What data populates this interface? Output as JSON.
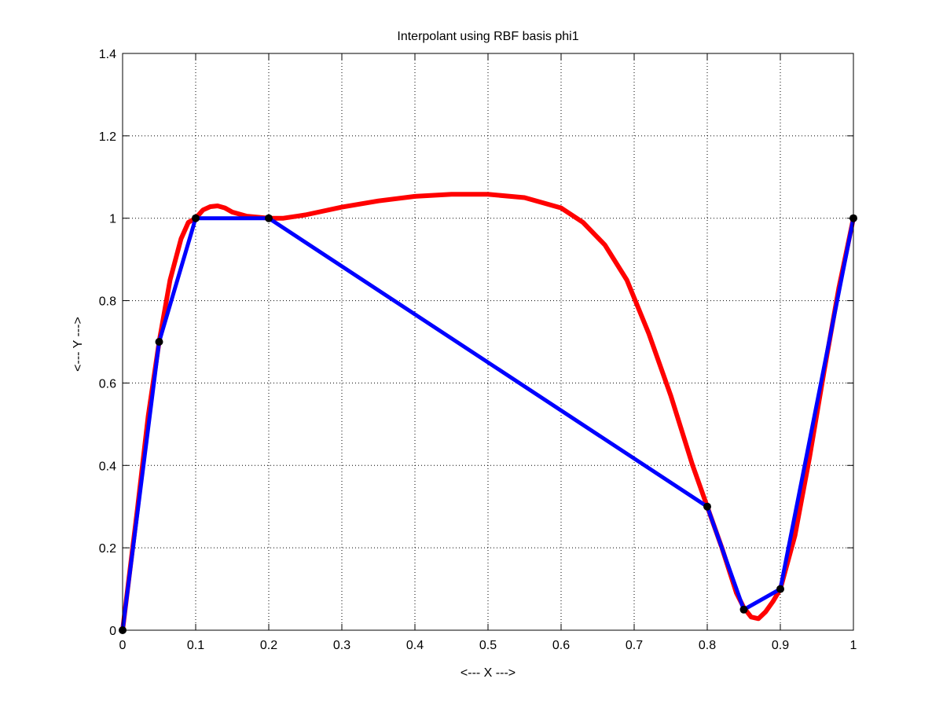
{
  "chart_data": {
    "type": "line",
    "title": "Interpolant using RBF basis phi1",
    "xlabel": "<--- X --->",
    "ylabel": "<--- Y --->",
    "xlim": [
      0,
      1
    ],
    "ylim": [
      0,
      1.4
    ],
    "grid": true,
    "x_ticks": [
      {
        "value": 0,
        "label": "0"
      },
      {
        "value": 0.1,
        "label": "0.1"
      },
      {
        "value": 0.2,
        "label": "0.2"
      },
      {
        "value": 0.3,
        "label": "0.3"
      },
      {
        "value": 0.4,
        "label": "0.4"
      },
      {
        "value": 0.5,
        "label": "0.5"
      },
      {
        "value": 0.6,
        "label": "0.6"
      },
      {
        "value": 0.7,
        "label": "0.7"
      },
      {
        "value": 0.8,
        "label": "0.8"
      },
      {
        "value": 0.9,
        "label": "0.9"
      },
      {
        "value": 1,
        "label": "1"
      }
    ],
    "y_ticks": [
      {
        "value": 0,
        "label": "0"
      },
      {
        "value": 0.2,
        "label": "0.2"
      },
      {
        "value": 0.4,
        "label": "0.4"
      },
      {
        "value": 0.6,
        "label": "0.6"
      },
      {
        "value": 0.8,
        "label": "0.8"
      },
      {
        "value": 1,
        "label": "1"
      },
      {
        "value": 1.2,
        "label": "1.2"
      },
      {
        "value": 1.4,
        "label": "1.4"
      }
    ],
    "series": [
      {
        "kind": "interpolant",
        "color": "#ff0000",
        "x": [
          0,
          0.02,
          0.035,
          0.05,
          0.065,
          0.08,
          0.09,
          0.1,
          0.11,
          0.12,
          0.13,
          0.14,
          0.15,
          0.17,
          0.2,
          0.22,
          0.25,
          0.3,
          0.35,
          0.4,
          0.45,
          0.5,
          0.55,
          0.6,
          0.63,
          0.66,
          0.69,
          0.72,
          0.75,
          0.78,
          0.8,
          0.82,
          0.84,
          0.85,
          0.86,
          0.87,
          0.88,
          0.89,
          0.9,
          0.92,
          0.94,
          0.96,
          0.98,
          1
        ],
        "y": [
          0,
          0.29,
          0.52,
          0.7,
          0.85,
          0.95,
          0.99,
          1.0,
          1.02,
          1.028,
          1.03,
          1.025,
          1.015,
          1.005,
          1.0,
          1.0,
          1.008,
          1.027,
          1.042,
          1.053,
          1.058,
          1.058,
          1.05,
          1.025,
          0.99,
          0.935,
          0.85,
          0.72,
          0.57,
          0.4,
          0.3,
          0.2,
          0.09,
          0.055,
          0.032,
          0.028,
          0.045,
          0.07,
          0.1,
          0.23,
          0.42,
          0.63,
          0.83,
          1.0
        ]
      },
      {
        "kind": "piecewise-linear",
        "color": "#0000ff",
        "x": [
          0,
          0.05,
          0.1,
          0.2,
          0.8,
          0.85,
          0.9,
          1
        ],
        "y": [
          0,
          0.7,
          1,
          1,
          0.3,
          0.05,
          0.1,
          1
        ]
      }
    ],
    "data_points": {
      "color": "#000000",
      "x": [
        0,
        0.05,
        0.1,
        0.2,
        0.8,
        0.85,
        0.9,
        1
      ],
      "y": [
        0,
        0.7,
        1,
        1,
        0.3,
        0.05,
        0.1,
        1
      ]
    }
  }
}
